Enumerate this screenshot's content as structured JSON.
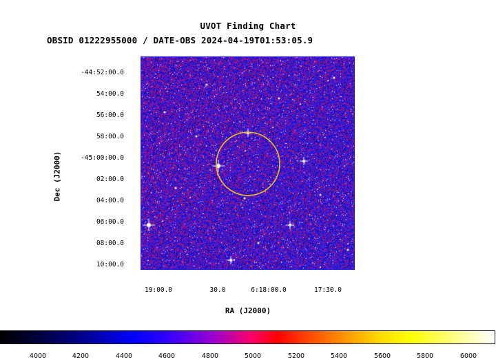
{
  "title": "UVOT Finding Chart",
  "subtitle": "OBSID 01222955000 / DATE-OBS 2024-04-19T01:53:05.9",
  "axes": {
    "ylabel": "Dec (J2000)",
    "xlabel": "RA (J2000)",
    "dec_ticks": [
      "-44:52:00.0",
      "54:00.0",
      "56:00.0",
      "58:00.0",
      "-45:00:00.0",
      "02:00.0",
      "04:00.0",
      "06:00.0",
      "08:00.0",
      "10:00.0"
    ],
    "ra_ticks": [
      "19:00.0",
      "30.0",
      "6:18:00.0",
      "17:30.0"
    ]
  },
  "colorbar": {
    "ticks": [
      "4000",
      "4200",
      "4400",
      "4600",
      "4800",
      "5000",
      "5200",
      "5400",
      "5600",
      "5800",
      "6000"
    ],
    "range": [
      3850,
      6100
    ]
  },
  "colors": {
    "frame": "#1a1aff",
    "circle": "#f0c020"
  },
  "target_circle": {
    "shape": "circle",
    "color": "yellow"
  }
}
